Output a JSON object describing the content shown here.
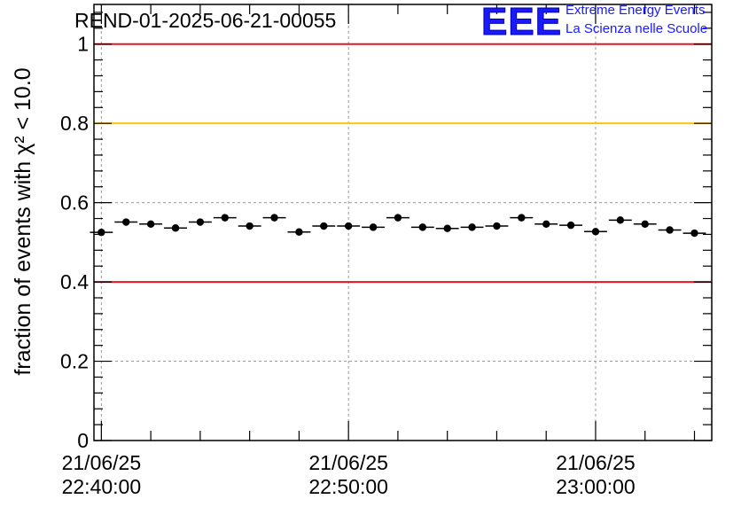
{
  "chart_data": {
    "type": "scatter",
    "title": "REND-01-2025-06-21-00055",
    "ylabel": "fraction of events with χ² < 10.0",
    "xlabel": "",
    "ylim": [
      0,
      1.1
    ],
    "yticks": [
      0,
      0.2,
      0.4,
      0.6,
      0.8,
      1
    ],
    "ytick_labels": [
      "0",
      "0.2",
      "0.4",
      "0.6",
      "0.8",
      "1"
    ],
    "x_unit": "minutes after 22:40:00",
    "xlim": [
      -0.3,
      24.7
    ],
    "xticks": [
      {
        "value": 0,
        "date": "21/06/25",
        "time": "22:40:00"
      },
      {
        "value": 10,
        "date": "21/06/25",
        "time": "22:50:00"
      },
      {
        "value": 20,
        "date": "21/06/25",
        "time": "23:00:00"
      }
    ],
    "grid": true,
    "reference_lines": [
      {
        "value": 1.0,
        "color": "#e8141e"
      },
      {
        "value": 0.8,
        "color": "#ffc20e"
      },
      {
        "value": 0.4,
        "color": "#e8141e"
      }
    ],
    "series": [
      {
        "name": "fraction",
        "bin_width": 1,
        "x": [
          0,
          1,
          2,
          3,
          4,
          5,
          6,
          7,
          8,
          9,
          10,
          11,
          12,
          13,
          14,
          15,
          16,
          17,
          18,
          19,
          20,
          21,
          22,
          23,
          24
        ],
        "values": [
          0.525,
          0.551,
          0.546,
          0.536,
          0.551,
          0.562,
          0.541,
          0.562,
          0.526,
          0.541,
          0.541,
          0.538,
          0.562,
          0.538,
          0.535,
          0.538,
          0.541,
          0.562,
          0.546,
          0.543,
          0.527,
          0.556,
          0.546,
          0.531,
          0.523
        ]
      }
    ]
  },
  "logo": {
    "mark": "EEE",
    "line1": "Extreme Energy Events",
    "line2": "La Scienza nelle Scuole"
  }
}
